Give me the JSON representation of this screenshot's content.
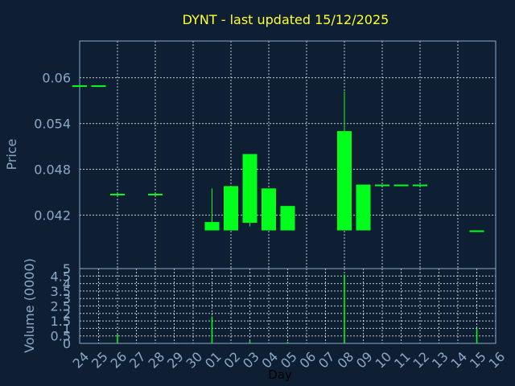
{
  "chart_data": [
    {
      "type": "candlestick",
      "title": "DYNT - last updated 15/12/2025",
      "ylabel": "Price",
      "xlabel": "",
      "ylim": [
        0.035,
        0.0648
      ],
      "yticks": [
        "0.06",
        "0.054",
        "0.048",
        "0.042"
      ],
      "ytick_values": [
        0.06,
        0.054,
        0.048,
        0.042
      ],
      "colors": {
        "candle": "#00ff1a",
        "background": "#0f1f33",
        "axis": "#8aa8c8",
        "title": "#ffff33"
      },
      "grid": true,
      "candles": [
        {
          "day": "24",
          "open": 0.059,
          "close": 0.059,
          "low": 0.059,
          "high": 0.059
        },
        {
          "day": "25",
          "open": 0.059,
          "close": 0.059,
          "low": 0.059,
          "high": 0.059
        },
        {
          "day": "26",
          "open": 0.0448,
          "close": 0.0448,
          "low": 0.0448,
          "high": 0.0448
        },
        {
          "day": "28",
          "open": 0.0448,
          "close": 0.0448,
          "low": 0.0448,
          "high": 0.0448
        },
        {
          "day": "01",
          "open": 0.04,
          "close": 0.0411,
          "low": 0.04,
          "high": 0.0455
        },
        {
          "day": "02",
          "open": 0.04,
          "close": 0.0458,
          "low": 0.04,
          "high": 0.0458
        },
        {
          "day": "03",
          "open": 0.041,
          "close": 0.05,
          "low": 0.0405,
          "high": 0.05
        },
        {
          "day": "04",
          "open": 0.04,
          "close": 0.0455,
          "low": 0.04,
          "high": 0.0455
        },
        {
          "day": "05",
          "open": 0.04,
          "close": 0.0432,
          "low": 0.04,
          "high": 0.0432
        },
        {
          "day": "08",
          "open": 0.04,
          "close": 0.053,
          "low": 0.04,
          "high": 0.0582
        },
        {
          "day": "09",
          "open": 0.04,
          "close": 0.046,
          "low": 0.04,
          "high": 0.046
        },
        {
          "day": "10",
          "open": 0.046,
          "close": 0.046,
          "low": 0.046,
          "high": 0.046
        },
        {
          "day": "11",
          "open": 0.046,
          "close": 0.046,
          "low": 0.046,
          "high": 0.046
        },
        {
          "day": "12",
          "open": 0.046,
          "close": 0.046,
          "low": 0.046,
          "high": 0.046
        },
        {
          "day": "15",
          "open": 0.04,
          "close": 0.04,
          "low": 0.04,
          "high": 0.04
        }
      ]
    },
    {
      "type": "bar",
      "xlabel": "Day",
      "ylabel": "Volume (0000)",
      "ylim": [
        0,
        5
      ],
      "yticks": [
        "0",
        "0.5",
        "1",
        "1.5",
        "2",
        "2.5",
        "3",
        "3.5",
        "4",
        "4.5",
        "5"
      ],
      "ytick_values": [
        0,
        0.5,
        1,
        1.5,
        2,
        2.5,
        3,
        3.5,
        4,
        4.5,
        5
      ],
      "categories": [
        "24",
        "25",
        "26",
        "27",
        "28",
        "29",
        "30",
        "01",
        "02",
        "03",
        "04",
        "05",
        "06",
        "07",
        "08",
        "09",
        "10",
        "11",
        "12",
        "13",
        "14",
        "15",
        "16"
      ],
      "values": [
        0,
        0,
        0.6,
        0,
        0,
        0,
        0,
        1.8,
        0,
        0.15,
        0,
        0.1,
        0,
        0,
        4.6,
        0,
        0,
        0,
        0,
        0,
        0,
        1.0,
        0
      ]
    }
  ]
}
